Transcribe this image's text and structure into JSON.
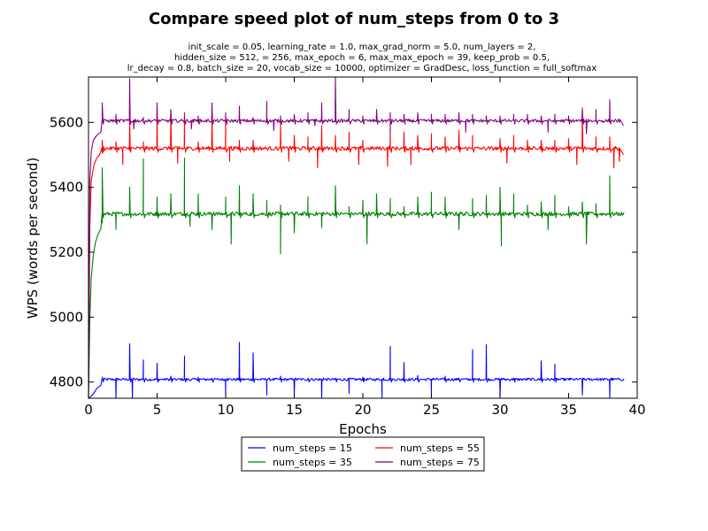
{
  "chart_data": {
    "type": "line",
    "title": "Compare speed plot of num_steps from 0 to 3",
    "subtitle_lines": [
      "init_scale = 0.05, learning_rate = 1.0, max_grad_norm = 5.0, num_layers = 2,",
      "hidden_size = 512,   = 256, max_epoch = 6, max_max_epoch = 39, keep_prob = 0.5,",
      "lr_decay = 0.8, batch_size = 20, vocab_size = 10000, optimizer = GradDesc, loss_function = full_softmax"
    ],
    "xlabel": "Epochs",
    "ylabel": "WPS (words per second)",
    "xlim": [
      0,
      40
    ],
    "ylim": [
      4750,
      5740
    ],
    "x_ticks": [
      0,
      5,
      10,
      15,
      20,
      25,
      30,
      35,
      40
    ],
    "y_ticks": [
      4800,
      5000,
      5200,
      5400,
      5600
    ],
    "grid": false,
    "legend_position": "below plot",
    "series": [
      {
        "name": "num_steps = 15",
        "color": "#0000ff",
        "base": 4808,
        "noise": 4,
        "spikes": [
          [
            1,
            4815
          ],
          [
            3,
            4918
          ],
          [
            4,
            4868
          ],
          [
            5,
            4858
          ],
          [
            6,
            4818
          ],
          [
            7,
            4880
          ],
          [
            8,
            4815
          ],
          [
            9,
            4812
          ],
          [
            11,
            4922
          ],
          [
            12,
            4890
          ],
          [
            14,
            4818
          ],
          [
            16,
            4812
          ],
          [
            18,
            4812
          ],
          [
            20,
            4815
          ],
          [
            22,
            4910
          ],
          [
            23,
            4860
          ],
          [
            24,
            4820
          ],
          [
            26,
            4818
          ],
          [
            27,
            4812
          ],
          [
            28,
            4900
          ],
          [
            29,
            4915
          ],
          [
            31,
            4812
          ],
          [
            32,
            4808
          ],
          [
            33,
            4865
          ],
          [
            34,
            4855
          ],
          [
            35,
            4808
          ],
          [
            37,
            4808
          ]
        ],
        "dips": [
          [
            2,
            4750
          ],
          [
            3.2,
            4750
          ],
          [
            10,
            4760
          ],
          [
            13,
            4760
          ],
          [
            15,
            4765
          ],
          [
            17,
            4750
          ],
          [
            19,
            4765
          ],
          [
            21.4,
            4750
          ],
          [
            25,
            4760
          ],
          [
            30,
            4755
          ],
          [
            36,
            4760
          ],
          [
            38,
            4750
          ]
        ],
        "points": [
          [
            0,
            4750
          ],
          [
            0.3,
            4760
          ],
          [
            0.6,
            4780
          ],
          [
            0.9,
            4790
          ],
          [
            1.0,
            4808
          ]
        ]
      },
      {
        "name": "num_steps = 35",
        "color": "#008000",
        "base": 5318,
        "noise": 6,
        "spikes": [
          [
            1,
            5460
          ],
          [
            3,
            5400
          ],
          [
            4,
            5488
          ],
          [
            5,
            5370
          ],
          [
            6,
            5380
          ],
          [
            7,
            5490
          ],
          [
            8,
            5380
          ],
          [
            10,
            5370
          ],
          [
            11,
            5405
          ],
          [
            12,
            5380
          ],
          [
            13,
            5360
          ],
          [
            14,
            5345
          ],
          [
            16,
            5370
          ],
          [
            18,
            5405
          ],
          [
            19,
            5340
          ],
          [
            20,
            5360
          ],
          [
            21,
            5380
          ],
          [
            22,
            5365
          ],
          [
            23,
            5340
          ],
          [
            24,
            5370
          ],
          [
            25,
            5385
          ],
          [
            26,
            5370
          ],
          [
            28,
            5365
          ],
          [
            29,
            5375
          ],
          [
            30,
            5400
          ],
          [
            31,
            5380
          ],
          [
            32,
            5345
          ],
          [
            33,
            5355
          ],
          [
            34,
            5375
          ],
          [
            35,
            5340
          ],
          [
            36,
            5355
          ],
          [
            37,
            5350
          ],
          [
            38,
            5435
          ]
        ],
        "dips": [
          [
            2,
            5270
          ],
          [
            7.4,
            5280
          ],
          [
            9,
            5270
          ],
          [
            10.4,
            5225
          ],
          [
            14,
            5195
          ],
          [
            15,
            5260
          ],
          [
            17,
            5275
          ],
          [
            20.3,
            5225
          ],
          [
            27,
            5270
          ],
          [
            30.1,
            5220
          ],
          [
            33.5,
            5270
          ],
          [
            36.3,
            5225
          ]
        ],
        "points": [
          [
            0,
            4750
          ],
          [
            0.1,
            4990
          ],
          [
            0.2,
            5120
          ],
          [
            0.35,
            5190
          ],
          [
            0.5,
            5230
          ],
          [
            0.7,
            5255
          ],
          [
            0.9,
            5272
          ],
          [
            1.0,
            5290
          ]
        ]
      },
      {
        "name": "num_steps = 55",
        "color": "#ff0000",
        "base": 5520,
        "noise": 6,
        "spikes": [
          [
            1,
            5545
          ],
          [
            2,
            5540
          ],
          [
            3,
            5610
          ],
          [
            4,
            5540
          ],
          [
            5,
            5645
          ],
          [
            6,
            5640
          ],
          [
            7,
            5630
          ],
          [
            8,
            5540
          ],
          [
            9,
            5620
          ],
          [
            10,
            5620
          ],
          [
            11,
            5545
          ],
          [
            12,
            5545
          ],
          [
            14,
            5600
          ],
          [
            15,
            5560
          ],
          [
            16,
            5555
          ],
          [
            17,
            5590
          ],
          [
            18,
            5560
          ],
          [
            19,
            5570
          ],
          [
            20,
            5545
          ],
          [
            22,
            5580
          ],
          [
            23,
            5570
          ],
          [
            24,
            5560
          ],
          [
            25,
            5565
          ],
          [
            26,
            5555
          ],
          [
            27,
            5575
          ],
          [
            28,
            5560
          ],
          [
            30,
            5550
          ],
          [
            31,
            5560
          ],
          [
            32,
            5545
          ],
          [
            33,
            5545
          ],
          [
            34,
            5545
          ],
          [
            35,
            5550
          ],
          [
            36,
            5645
          ],
          [
            37,
            5555
          ],
          [
            38,
            5555
          ]
        ],
        "dips": [
          [
            2.5,
            5470
          ],
          [
            6.5,
            5475
          ],
          [
            10.3,
            5480
          ],
          [
            14.6,
            5480
          ],
          [
            16.7,
            5460
          ],
          [
            19.7,
            5470
          ],
          [
            21.8,
            5465
          ],
          [
            23.5,
            5470
          ],
          [
            30.5,
            5475
          ],
          [
            35.6,
            5470
          ],
          [
            38.3,
            5460
          ]
        ],
        "points": [
          [
            0,
            4750
          ],
          [
            0.1,
            5280
          ],
          [
            0.2,
            5420
          ],
          [
            0.4,
            5470
          ],
          [
            0.6,
            5490
          ],
          [
            0.8,
            5500
          ],
          [
            1.0,
            5505
          ]
        ],
        "end": [
          [
            38.7,
            5480
          ],
          [
            39.0,
            5500
          ]
        ]
      },
      {
        "name": "num_steps = 75",
        "color": "#800080",
        "base": 5605,
        "noise": 5,
        "spikes": [
          [
            1,
            5660
          ],
          [
            2,
            5625
          ],
          [
            3,
            5735
          ],
          [
            4,
            5615
          ],
          [
            5,
            5660
          ],
          [
            6,
            5640
          ],
          [
            7,
            5620
          ],
          [
            8,
            5620
          ],
          [
            9,
            5660
          ],
          [
            10,
            5630
          ],
          [
            11,
            5650
          ],
          [
            12,
            5615
          ],
          [
            13,
            5665
          ],
          [
            14,
            5620
          ],
          [
            15,
            5625
          ],
          [
            16,
            5630
          ],
          [
            17,
            5660
          ],
          [
            18,
            5738
          ],
          [
            19,
            5640
          ],
          [
            20,
            5620
          ],
          [
            21,
            5640
          ],
          [
            22,
            5630
          ],
          [
            23,
            5625
          ],
          [
            24,
            5630
          ],
          [
            25,
            5625
          ],
          [
            26,
            5625
          ],
          [
            27,
            5630
          ],
          [
            28,
            5625
          ],
          [
            29,
            5620
          ],
          [
            30,
            5620
          ],
          [
            31,
            5625
          ],
          [
            32,
            5625
          ],
          [
            33,
            5620
          ],
          [
            34,
            5625
          ],
          [
            35,
            5620
          ],
          [
            36,
            5640
          ],
          [
            37,
            5640
          ],
          [
            38,
            5670
          ]
        ],
        "dips": [
          [
            3.3,
            5580
          ],
          [
            7.5,
            5580
          ],
          [
            13.5,
            5575
          ],
          [
            16.5,
            5590
          ],
          [
            22,
            5570
          ],
          [
            27.5,
            5570
          ],
          [
            33.5,
            5570
          ],
          [
            36.3,
            5565
          ]
        ],
        "points": [
          [
            0,
            4750
          ],
          [
            0.1,
            5420
          ],
          [
            0.2,
            5510
          ],
          [
            0.35,
            5545
          ],
          [
            0.6,
            5560
          ],
          [
            0.9,
            5570
          ],
          [
            1.0,
            5600
          ]
        ],
        "end": [
          [
            38.7,
            5600
          ],
          [
            39.0,
            5590
          ]
        ]
      }
    ]
  }
}
